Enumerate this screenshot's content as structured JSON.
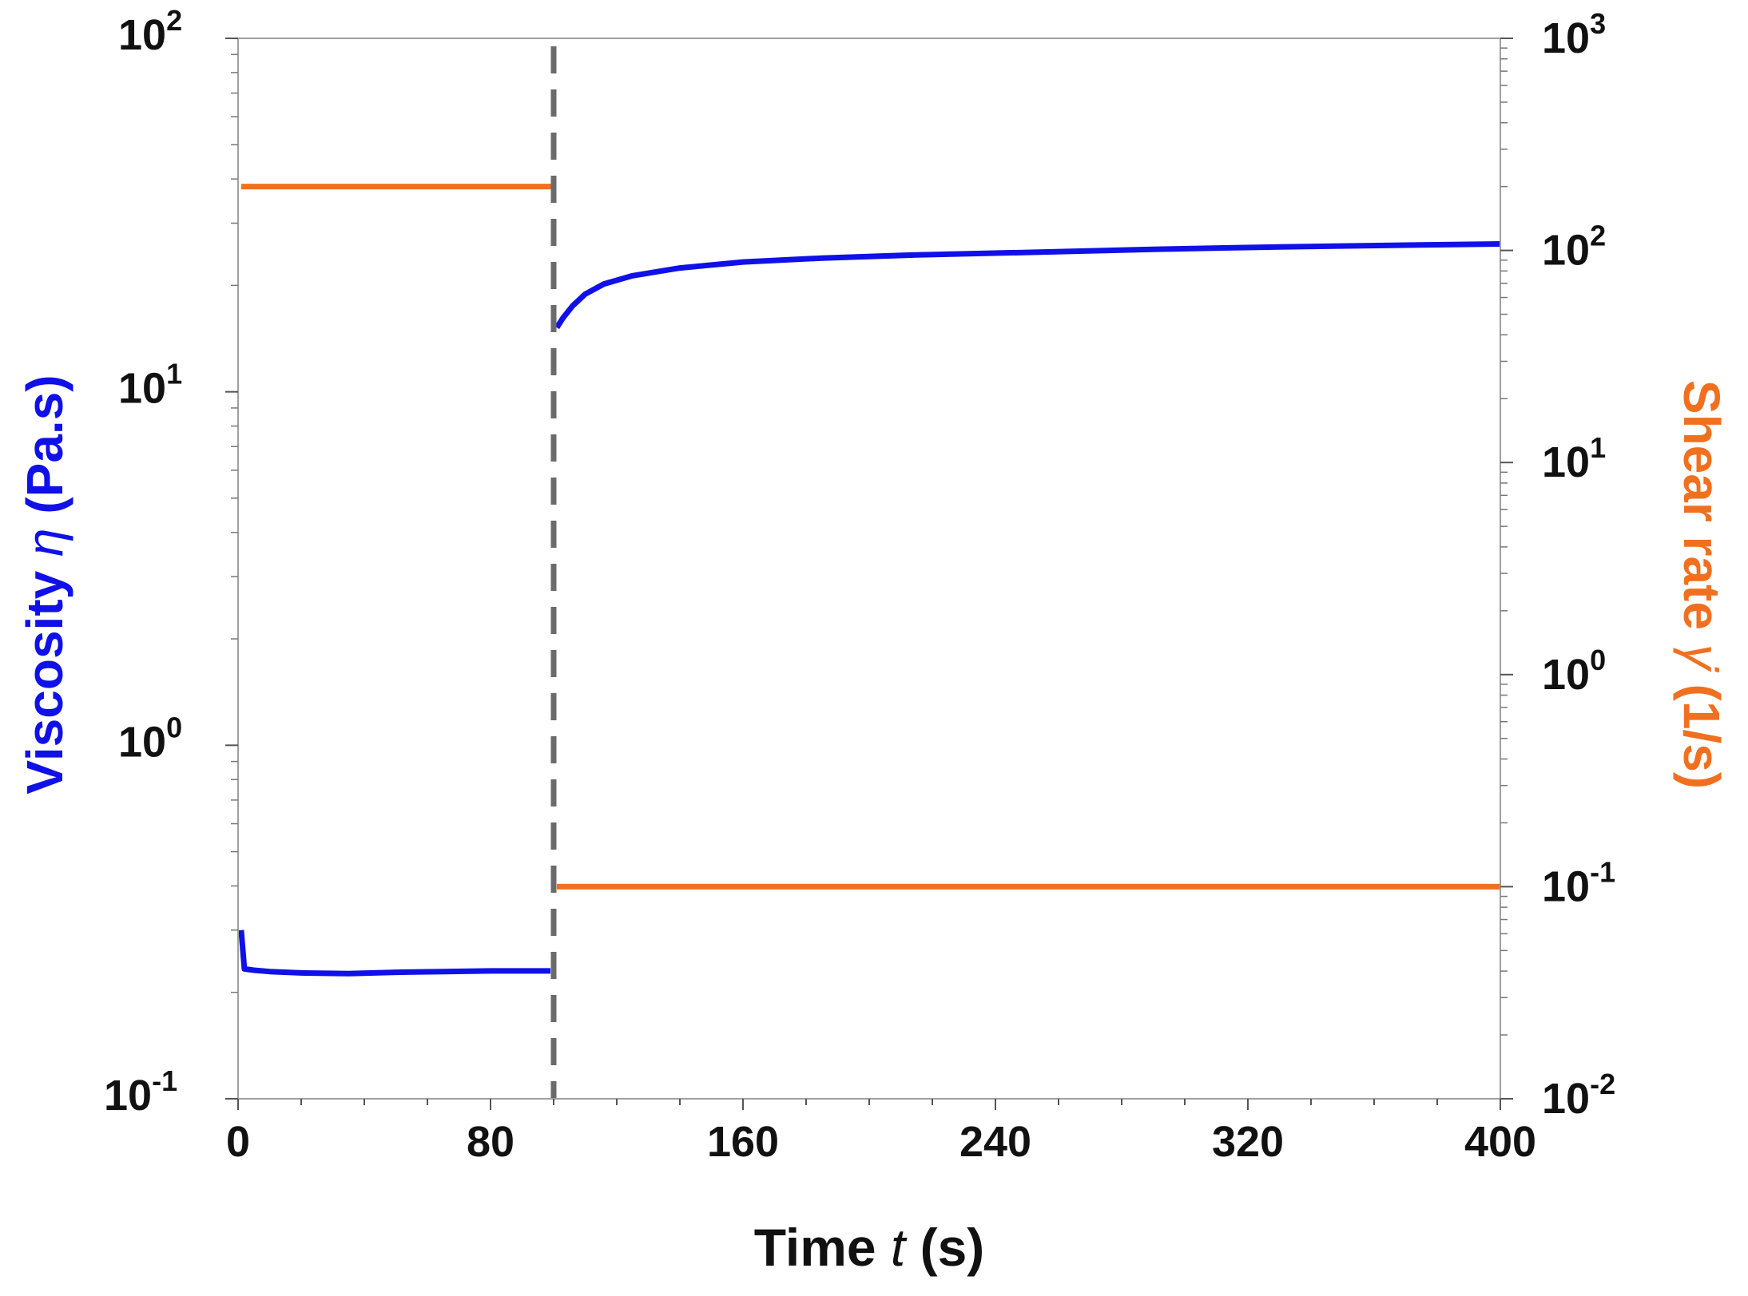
{
  "chart_data": {
    "type": "line",
    "title": "",
    "xlabel": {
      "prefix": "Time ",
      "symbol": "t",
      "suffix": " (s)"
    },
    "ylabel_left": {
      "prefix": "Viscosity ",
      "symbol": "η",
      "suffix": " (Pa.s)"
    },
    "ylabel_right": {
      "prefix": "Shear rate ",
      "symbol": "γ̇",
      "suffix": " (1/s)"
    },
    "xlim": [
      0,
      400
    ],
    "x_ticks": [
      0,
      80,
      160,
      240,
      320,
      400
    ],
    "y_left_scale": "log",
    "y_left_lim": [
      0.1,
      100
    ],
    "y_left_ticks": [
      {
        "base": "10",
        "exp": "-1"
      },
      {
        "base": "10",
        "exp": "0"
      },
      {
        "base": "10",
        "exp": "1"
      },
      {
        "base": "10",
        "exp": "2"
      }
    ],
    "y_right_scale": "log",
    "y_right_lim": [
      0.01,
      1000
    ],
    "y_right_ticks": [
      {
        "base": "10",
        "exp": "-2"
      },
      {
        "base": "10",
        "exp": "-1"
      },
      {
        "base": "10",
        "exp": "0"
      },
      {
        "base": "10",
        "exp": "1"
      },
      {
        "base": "10",
        "exp": "2"
      },
      {
        "base": "10",
        "exp": "3"
      }
    ],
    "colors": {
      "viscosity": "#1010e8",
      "shear_rate": "#f07020",
      "divider": "#6b6b6b",
      "axes": "#a0a0a0",
      "tick_text": "#111111"
    },
    "divider_x": 100,
    "series": [
      {
        "axis": "left",
        "key": "viscosity",
        "x": [
          1,
          2,
          5,
          10,
          20,
          35,
          50,
          65,
          80,
          99
        ],
        "y": [
          0.3,
          0.233,
          0.231,
          0.229,
          0.227,
          0.226,
          0.228,
          0.229,
          0.23,
          0.23
        ]
      },
      {
        "axis": "left",
        "key": "viscosity",
        "x": [
          101,
          103,
          106,
          110,
          116,
          125,
          140,
          160,
          185,
          215,
          250,
          290,
          330,
          370,
          400
        ],
        "y": [
          15.2,
          16.2,
          17.5,
          18.9,
          20.2,
          21.3,
          22.4,
          23.3,
          23.9,
          24.4,
          24.8,
          25.3,
          25.7,
          26.0,
          26.2
        ]
      },
      {
        "axis": "right",
        "key": "shear_rate",
        "x": [
          1,
          100
        ],
        "y": [
          200,
          200
        ]
      },
      {
        "axis": "right",
        "key": "shear_rate",
        "x": [
          101,
          400
        ],
        "y": [
          0.1,
          0.1
        ]
      }
    ]
  }
}
